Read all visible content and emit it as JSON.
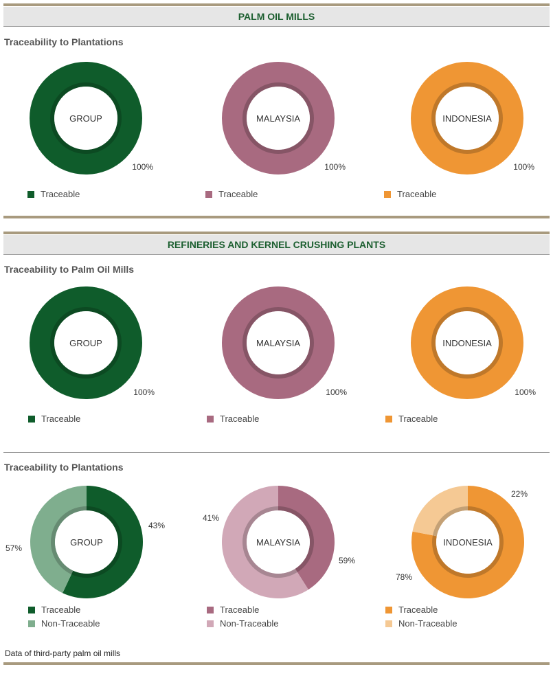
{
  "sections": [
    {
      "title": "PALM OIL MILLS"
    },
    {
      "title": "REFINERIES AND KERNEL CRUSHING PLANTS"
    }
  ],
  "subtitles": [
    "Traceability to Plantations",
    "Traceability to Palm Oil Mills",
    "Traceability to Plantations"
  ],
  "footnote": "Data of third-party palm oil mills",
  "colors": {
    "group_traceable": "#0f5c2b",
    "group_non": "#7fae8e",
    "malaysia_traceable": "#a86a80",
    "malaysia_non": "#d1a8b7",
    "indonesia_traceable": "#ef9634",
    "indonesia_non": "#f5c994"
  },
  "chart_data": [
    {
      "type": "pie",
      "title": "Traceability to Plantations",
      "center_label": "GROUP",
      "series": [
        {
          "name": "Traceable",
          "value": 100,
          "label": "100%",
          "color": "#0f5c2b"
        }
      ]
    },
    {
      "type": "pie",
      "title": "Traceability to Plantations",
      "center_label": "MALAYSIA",
      "series": [
        {
          "name": "Traceable",
          "value": 100,
          "label": "100%",
          "color": "#a86a80"
        }
      ]
    },
    {
      "type": "pie",
      "title": "Traceability to Plantations",
      "center_label": "INDONESIA",
      "series": [
        {
          "name": "Traceable",
          "value": 100,
          "label": "100%",
          "color": "#ef9634"
        }
      ]
    },
    {
      "type": "pie",
      "title": "Traceability to Palm Oil Mills",
      "center_label": "GROUP",
      "series": [
        {
          "name": "Traceable",
          "value": 100,
          "label": "100%",
          "color": "#0f5c2b"
        }
      ]
    },
    {
      "type": "pie",
      "title": "Traceability to Palm Oil Mills",
      "center_label": "MALAYSIA",
      "series": [
        {
          "name": "Traceable",
          "value": 100,
          "label": "100%",
          "color": "#a86a80"
        }
      ]
    },
    {
      "type": "pie",
      "title": "Traceability to Palm Oil Mills",
      "center_label": "INDONESIA",
      "series": [
        {
          "name": "Traceable",
          "value": 100,
          "label": "100%",
          "color": "#ef9634"
        }
      ]
    },
    {
      "type": "pie",
      "title": "Traceability to Plantations",
      "center_label": "GROUP",
      "series": [
        {
          "name": "Traceable",
          "value": 57,
          "label": "57%",
          "color": "#0f5c2b"
        },
        {
          "name": "Non-Traceable",
          "value": 43,
          "label": "43%",
          "color": "#7fae8e"
        }
      ]
    },
    {
      "type": "pie",
      "title": "Traceability to Plantations",
      "center_label": "MALAYSIA",
      "series": [
        {
          "name": "Traceable",
          "value": 41,
          "label": "41%",
          "color": "#a86a80"
        },
        {
          "name": "Non-Traceable",
          "value": 59,
          "label": "59%",
          "color": "#d1a8b7"
        }
      ]
    },
    {
      "type": "pie",
      "title": "Traceability to Plantations",
      "center_label": "INDONESIA",
      "series": [
        {
          "name": "Traceable",
          "value": 78,
          "label": "78%",
          "color": "#ef9634"
        },
        {
          "name": "Non-Traceable",
          "value": 22,
          "label": "22%",
          "color": "#f5c994"
        }
      ]
    }
  ]
}
